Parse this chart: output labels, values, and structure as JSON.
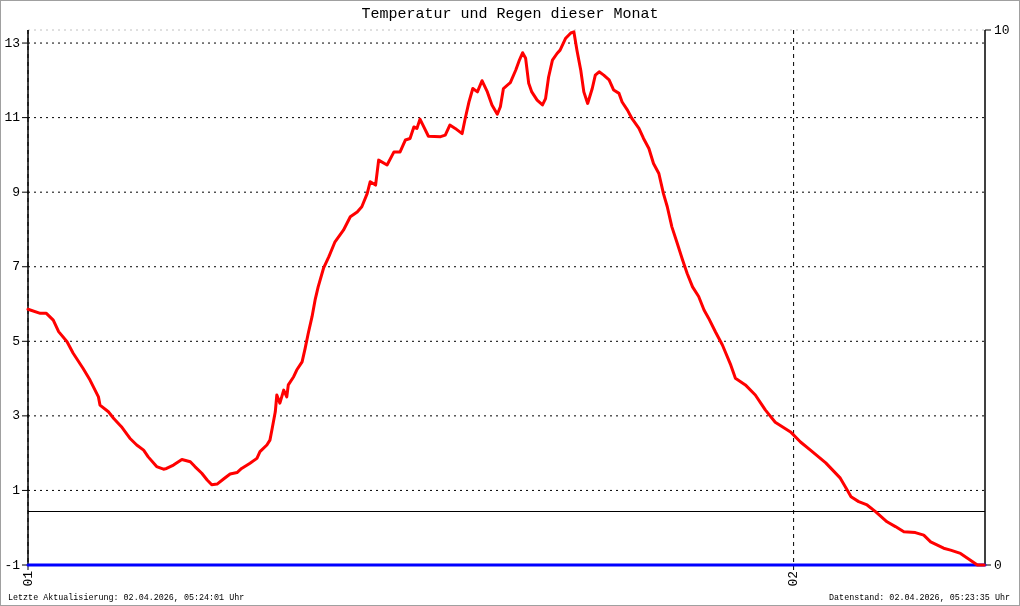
{
  "chart_data": {
    "type": "line",
    "title": "Temperatur und Regen dieser Monat",
    "xlim": [
      1,
      2.25
    ],
    "xticks": [
      {
        "value": 1,
        "label": "01"
      },
      {
        "value": 2,
        "label": "02"
      }
    ],
    "ylim": [
      -1,
      13.35
    ],
    "yticks": [
      -1,
      1,
      3,
      5,
      7,
      9,
      11,
      13
    ],
    "y2lim": [
      0,
      10
    ],
    "y2ticks": [
      0,
      10
    ],
    "grid": true,
    "ref_lines": [
      {
        "axis": "y2",
        "value": 1,
        "color": "#000000"
      }
    ],
    "series": [
      {
        "color": "#ff0000",
        "x": [
          1.0,
          1.016,
          1.024,
          1.033,
          1.04,
          1.051,
          1.059,
          1.072,
          1.081,
          1.092,
          1.094,
          1.105,
          1.112,
          1.122,
          1.133,
          1.142,
          1.151,
          1.157,
          1.168,
          1.177,
          1.181,
          1.19,
          1.201,
          1.212,
          1.218,
          1.227,
          1.234,
          1.24,
          1.247,
          1.255,
          1.264,
          1.273,
          1.279,
          1.29,
          1.299,
          1.303,
          1.312,
          1.316,
          1.319,
          1.323,
          1.325,
          1.329,
          1.334,
          1.338,
          1.34,
          1.347,
          1.351,
          1.358,
          1.362,
          1.366,
          1.371,
          1.375,
          1.379,
          1.386,
          1.393,
          1.401,
          1.412,
          1.421,
          1.43,
          1.436,
          1.443,
          1.447,
          1.454,
          1.458,
          1.469,
          1.478,
          1.486,
          1.493,
          1.499,
          1.504,
          1.508,
          1.512,
          1.517,
          1.523,
          1.539,
          1.545,
          1.551,
          1.558,
          1.567,
          1.571,
          1.576,
          1.581,
          1.587,
          1.593,
          1.6,
          1.606,
          1.613,
          1.617,
          1.621,
          1.63,
          1.637,
          1.642,
          1.646,
          1.65,
          1.654,
          1.658,
          1.665,
          1.672,
          1.676,
          1.68,
          1.685,
          1.691,
          1.695,
          1.702,
          1.709,
          1.713,
          1.717,
          1.722,
          1.726,
          1.731,
          1.737,
          1.741,
          1.746,
          1.752,
          1.759,
          1.765,
          1.772,
          1.776,
          1.783,
          1.789,
          1.798,
          1.804,
          1.811,
          1.817,
          1.824,
          1.83,
          1.835,
          1.841,
          1.848,
          1.855,
          1.861,
          1.868,
          1.876,
          1.883,
          1.889,
          1.898,
          1.907,
          1.918,
          1.924,
          1.937,
          1.95,
          1.963,
          1.976,
          1.996,
          2.009,
          2.022,
          2.042,
          2.061,
          2.07,
          2.075,
          2.085,
          2.096,
          2.107,
          2.122,
          2.133,
          2.144,
          2.159,
          2.17,
          2.179,
          2.196,
          2.205,
          2.218,
          2.231,
          2.24,
          2.249
        ],
        "values": [
          5.86,
          5.75,
          5.75,
          5.57,
          5.26,
          4.99,
          4.68,
          4.27,
          3.96,
          3.51,
          3.29,
          3.11,
          2.93,
          2.71,
          2.4,
          2.22,
          2.08,
          1.9,
          1.64,
          1.57,
          1.59,
          1.68,
          1.83,
          1.77,
          1.64,
          1.46,
          1.28,
          1.15,
          1.17,
          1.3,
          1.44,
          1.48,
          1.59,
          1.73,
          1.86,
          2.04,
          2.22,
          2.35,
          2.67,
          3.11,
          3.56,
          3.34,
          3.69,
          3.51,
          3.83,
          4.05,
          4.23,
          4.45,
          4.81,
          5.21,
          5.66,
          6.11,
          6.46,
          6.96,
          7.27,
          7.67,
          7.98,
          8.34,
          8.47,
          8.61,
          8.96,
          9.28,
          9.19,
          9.86,
          9.73,
          10.08,
          10.08,
          10.4,
          10.44,
          10.75,
          10.71,
          10.96,
          10.75,
          10.5,
          10.49,
          10.53,
          10.8,
          10.71,
          10.57,
          10.97,
          11.42,
          11.78,
          11.69,
          11.99,
          11.69,
          11.34,
          11.09,
          11.29,
          11.78,
          11.94,
          12.27,
          12.55,
          12.74,
          12.59,
          11.92,
          11.69,
          11.47,
          11.34,
          11.51,
          12.09,
          12.54,
          12.72,
          12.81,
          13.12,
          13.27,
          13.3,
          12.81,
          12.27,
          11.69,
          11.38,
          11.78,
          12.14,
          12.23,
          12.14,
          12.01,
          11.74,
          11.65,
          11.42,
          11.2,
          10.97,
          10.71,
          10.44,
          10.17,
          9.77,
          9.5,
          8.96,
          8.61,
          8.07,
          7.63,
          7.18,
          6.82,
          6.46,
          6.2,
          5.84,
          5.62,
          5.25,
          4.9,
          4.36,
          4.01,
          3.83,
          3.56,
          3.16,
          2.83,
          2.57,
          2.3,
          2.08,
          1.74,
          1.33,
          1.01,
          0.83,
          0.7,
          0.61,
          0.43,
          0.16,
          0.03,
          -0.11,
          -0.13,
          -0.2,
          -0.38,
          -0.55,
          -0.6,
          -0.69,
          -0.87,
          -1.0,
          -1.0
        ]
      },
      {
        "color": "#0000ff",
        "axis": "y2",
        "x": [
          1,
          2.25
        ],
        "values": [
          0,
          0
        ]
      }
    ],
    "annotations": [
      "Letzte Aktualisierung: 02.04.2026, 05:24:01 Uhr",
      "Datenstand: 02.04.2026, 05:23:35 Uhr"
    ]
  }
}
